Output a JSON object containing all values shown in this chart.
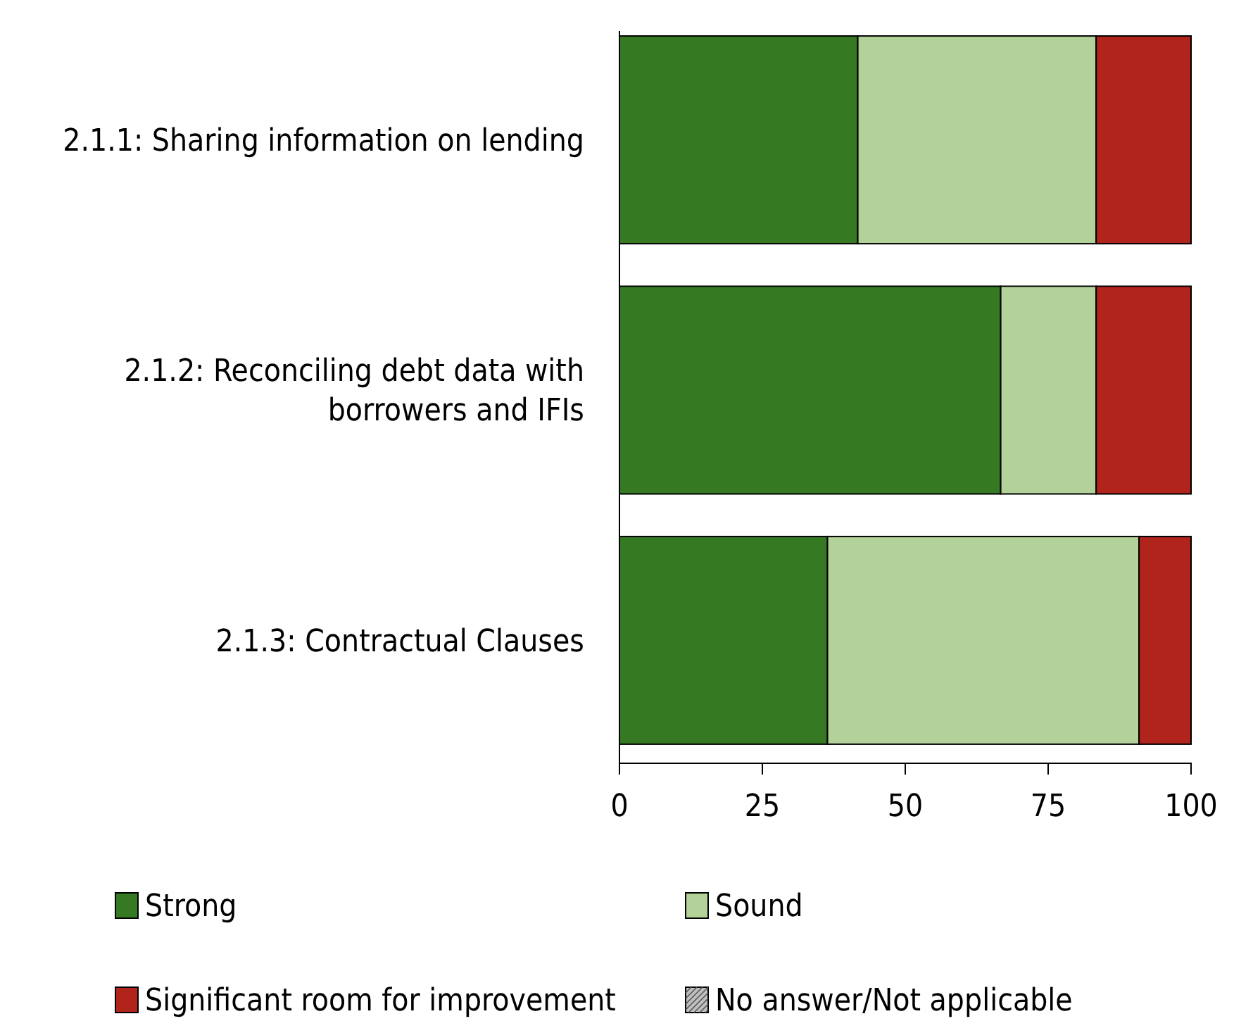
{
  "chart_data": {
    "type": "bar",
    "orientation": "horizontal",
    "stacked": true,
    "categories": [
      "2.1.1: Sharing information on lending",
      "2.1.2: Reconciling debt data with borrowers and IFIs",
      "2.1.3: Contractual Clauses"
    ],
    "series": [
      {
        "name": "Strong",
        "color": "#357a23",
        "values": [
          41.7,
          66.7,
          36.4
        ]
      },
      {
        "name": "Sound",
        "color": "#b3d29a",
        "values": [
          41.7,
          16.7,
          54.5
        ]
      },
      {
        "name": "Significant room for improvement",
        "color": "#b0241b",
        "values": [
          16.6,
          16.6,
          9.1
        ]
      },
      {
        "name": "No answer/Not applicable",
        "color": "#bfbfbf",
        "values": [
          0,
          0,
          0
        ]
      }
    ],
    "xlim": [
      0,
      100
    ],
    "xticks": [
      0,
      25,
      50,
      75,
      100
    ],
    "grid": false,
    "legend": "bottom"
  }
}
